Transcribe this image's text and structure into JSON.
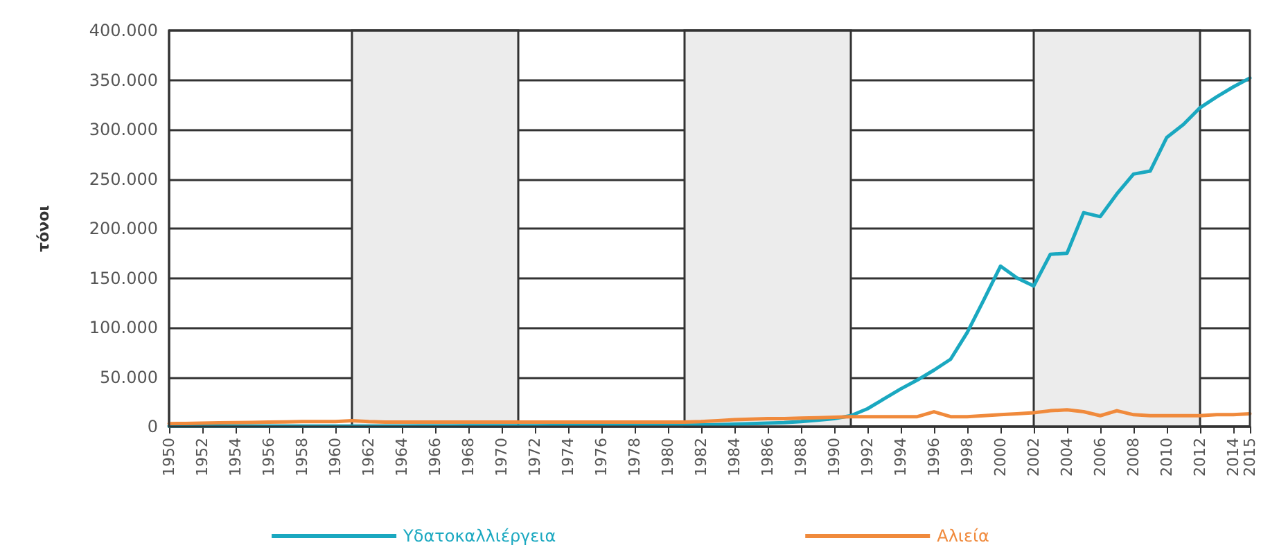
{
  "chart_data": {
    "type": "line",
    "ylabel": "τόνοι",
    "x": [
      1950,
      1951,
      1952,
      1953,
      1954,
      1955,
      1956,
      1957,
      1958,
      1959,
      1960,
      1961,
      1962,
      1963,
      1964,
      1965,
      1966,
      1967,
      1968,
      1969,
      1970,
      1971,
      1972,
      1973,
      1974,
      1975,
      1976,
      1977,
      1978,
      1979,
      1980,
      1981,
      1982,
      1983,
      1984,
      1985,
      1986,
      1987,
      1988,
      1989,
      1990,
      1991,
      1992,
      1993,
      1994,
      1995,
      1996,
      1997,
      1998,
      1999,
      2000,
      2001,
      2002,
      2003,
      2004,
      2005,
      2006,
      2007,
      2008,
      2009,
      2010,
      2011,
      2012,
      2013,
      2014,
      2015
    ],
    "series": [
      {
        "name": "Υδατοκαλλιέργεια",
        "color": "#1aa8c0",
        "values": [
          500,
          500,
          500,
          500,
          500,
          500,
          500,
          500,
          500,
          500,
          500,
          600,
          600,
          600,
          600,
          700,
          700,
          700,
          800,
          800,
          800,
          900,
          900,
          1000,
          1000,
          1000,
          1100,
          1200,
          1300,
          1400,
          1500,
          1600,
          1700,
          2000,
          2500,
          3000,
          3500,
          4000,
          5000,
          6500,
          8000,
          11000,
          18000,
          28000,
          38000,
          47000,
          57000,
          68000,
          95000,
          128000,
          162000,
          150000,
          142000,
          174000,
          175000,
          216000,
          212000,
          235000,
          255000,
          258000,
          292000,
          305000,
          322000,
          333000,
          343000,
          352000
        ]
      },
      {
        "name": "Αλιεία",
        "color": "#f08a3c",
        "values": [
          3000,
          3200,
          3500,
          3800,
          4000,
          4200,
          4500,
          4800,
          5000,
          5000,
          5000,
          6000,
          5000,
          4500,
          4500,
          4500,
          4500,
          4500,
          4500,
          4500,
          4500,
          4500,
          4500,
          4500,
          4500,
          4500,
          4500,
          4500,
          4500,
          4500,
          4500,
          4500,
          5000,
          6000,
          7000,
          7500,
          8000,
          8000,
          8500,
          9000,
          9500,
          10000,
          10000,
          10000,
          10000,
          10000,
          15000,
          10000,
          10000,
          11000,
          12000,
          13000,
          14000,
          16000,
          17000,
          15000,
          11000,
          16000,
          12000,
          11000,
          11000,
          11000,
          11000,
          12000,
          12000,
          13000
        ]
      }
    ],
    "xlim": [
      1950,
      2015
    ],
    "xticks": [
      1950,
      1952,
      1954,
      1956,
      1958,
      1960,
      1962,
      1964,
      1966,
      1968,
      1970,
      1972,
      1974,
      1976,
      1978,
      1980,
      1982,
      1984,
      1986,
      1988,
      1990,
      1992,
      1994,
      1996,
      1998,
      2000,
      2002,
      2004,
      2006,
      2008,
      2010,
      2012,
      2014,
      2015
    ],
    "ylim": [
      0,
      400000
    ],
    "yticks": [
      0,
      {
        "value": 50000,
        "label": "50.000"
      },
      {
        "value": 100000,
        "label": "100.000"
      },
      {
        "value": 150000,
        "label": "150.000"
      },
      {
        "value": 200000,
        "label": "200.000"
      },
      {
        "value": 250000,
        "label": "250.000"
      },
      {
        "value": 300000,
        "label": "300.000"
      },
      {
        "value": 350000,
        "label": "350.000"
      },
      {
        "value": 400000,
        "label": "400.000"
      }
    ],
    "bands": [
      {
        "axis": "x",
        "from": 1961,
        "to": 1971,
        "color": "#ececec"
      },
      {
        "axis": "x",
        "from": 1981,
        "to": 1991,
        "color": "#ececec"
      },
      {
        "axis": "x",
        "from": 2002,
        "to": 2012,
        "color": "#ececec"
      }
    ],
    "grid": "y",
    "legend": "bottom",
    "marker": "none",
    "line_style": "solid"
  }
}
